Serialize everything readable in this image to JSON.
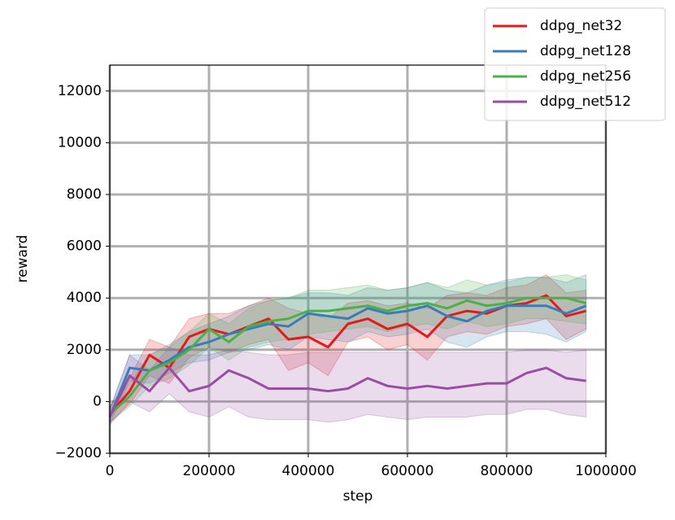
{
  "chart_data": {
    "type": "line",
    "x_label": "step",
    "y_label": "reward",
    "xlim": [
      0,
      1000000
    ],
    "ylim": [
      -2000,
      13000
    ],
    "xticks": [
      0,
      200000,
      400000,
      600000,
      800000,
      1000000
    ],
    "yticks": [
      {
        "value": -2000,
        "label": "−2000"
      },
      0,
      2000,
      4000,
      6000,
      8000,
      10000,
      12000
    ],
    "grid": true,
    "legend": "upper right",
    "x": [
      0,
      40000,
      80000,
      120000,
      160000,
      200000,
      240000,
      280000,
      320000,
      360000,
      400000,
      440000,
      480000,
      520000,
      560000,
      600000,
      640000,
      680000,
      720000,
      760000,
      800000,
      840000,
      880000,
      920000,
      960000
    ],
    "series": [
      {
        "name": "ddpg_net32",
        "color": "#e41a1c",
        "values": [
          -500,
          400,
          1800,
          1300,
          2500,
          2800,
          2600,
          2900,
          3200,
          2400,
          2500,
          2100,
          3000,
          3200,
          2800,
          3000,
          2500,
          3300,
          3500,
          3400,
          3700,
          3800,
          4100,
          3300,
          3500
        ],
        "lower": [
          -800,
          -100,
          1000,
          700,
          1700,
          2100,
          1900,
          2200,
          2400,
          1200,
          1500,
          1000,
          2300,
          2500,
          2000,
          2200,
          1600,
          2500,
          2700,
          2600,
          2900,
          3000,
          3200,
          2400,
          2800
        ],
        "upper": [
          -200,
          900,
          2400,
          2100,
          3200,
          3400,
          3400,
          3700,
          4000,
          3600,
          3400,
          3200,
          3800,
          3900,
          3700,
          3800,
          3600,
          4100,
          4200,
          4100,
          4400,
          4500,
          4900,
          4200,
          4300
        ]
      },
      {
        "name": "ddpg_net128",
        "color": "#377eb8",
        "values": [
          -600,
          1300,
          1200,
          1600,
          2100,
          2300,
          2600,
          2800,
          3000,
          2900,
          3400,
          3300,
          3200,
          3600,
          3400,
          3500,
          3700,
          3300,
          3100,
          3500,
          3700,
          3700,
          3700,
          3400,
          3700
        ],
        "lower": [
          -900,
          800,
          700,
          1100,
          1500,
          1600,
          1900,
          2000,
          2200,
          2000,
          2500,
          2400,
          2300,
          2700,
          2500,
          2600,
          2800,
          2300,
          2100,
          2500,
          2700,
          2700,
          2600,
          2300,
          2700
        ],
        "upper": [
          -300,
          1800,
          1800,
          2200,
          2700,
          3000,
          3300,
          3700,
          3900,
          4000,
          4200,
          4200,
          4100,
          4400,
          4300,
          4400,
          4600,
          4300,
          4200,
          4500,
          4700,
          4800,
          4800,
          4600,
          4900
        ]
      },
      {
        "name": "ddpg_net256",
        "color": "#4daf4a",
        "values": [
          -500,
          200,
          1200,
          1500,
          2000,
          2800,
          2300,
          2900,
          3100,
          3200,
          3500,
          3500,
          3600,
          3700,
          3500,
          3700,
          3800,
          3600,
          3900,
          3700,
          3800,
          4000,
          4000,
          4000,
          3800
        ],
        "lower": [
          -800,
          -200,
          600,
          900,
          1400,
          2100,
          1600,
          2100,
          2300,
          2400,
          2600,
          2700,
          2800,
          2900,
          2700,
          2900,
          3000,
          2800,
          3100,
          2900,
          3000,
          3200,
          3200,
          3100,
          3000
        ],
        "upper": [
          -200,
          700,
          1800,
          2100,
          2700,
          3400,
          3000,
          3600,
          3900,
          4000,
          4300,
          4300,
          4400,
          4500,
          4300,
          4400,
          4600,
          4400,
          4700,
          4500,
          4600,
          4800,
          4800,
          4900,
          4700
        ]
      },
      {
        "name": "ddpg_net512",
        "color": "#984ea3",
        "values": [
          -600,
          1000,
          400,
          1300,
          400,
          600,
          1200,
          900,
          500,
          500,
          500,
          400,
          500,
          900,
          600,
          500,
          600,
          500,
          600,
          700,
          700,
          1100,
          1300,
          900,
          800
        ],
        "lower": [
          -900,
          0,
          -400,
          300,
          -400,
          -600,
          -200,
          -600,
          -700,
          -700,
          -700,
          -800,
          -700,
          -500,
          -600,
          -700,
          -600,
          -600,
          -600,
          -500,
          -500,
          -300,
          -300,
          -500,
          -600
        ],
        "upper": [
          -300,
          1800,
          1200,
          2100,
          1800,
          1800,
          2000,
          1900,
          1800,
          1800,
          1900,
          1900,
          1900,
          1900,
          1900,
          1900,
          1900,
          1900,
          1900,
          1900,
          1900,
          2000,
          2000,
          1900,
          2000
        ]
      }
    ]
  }
}
